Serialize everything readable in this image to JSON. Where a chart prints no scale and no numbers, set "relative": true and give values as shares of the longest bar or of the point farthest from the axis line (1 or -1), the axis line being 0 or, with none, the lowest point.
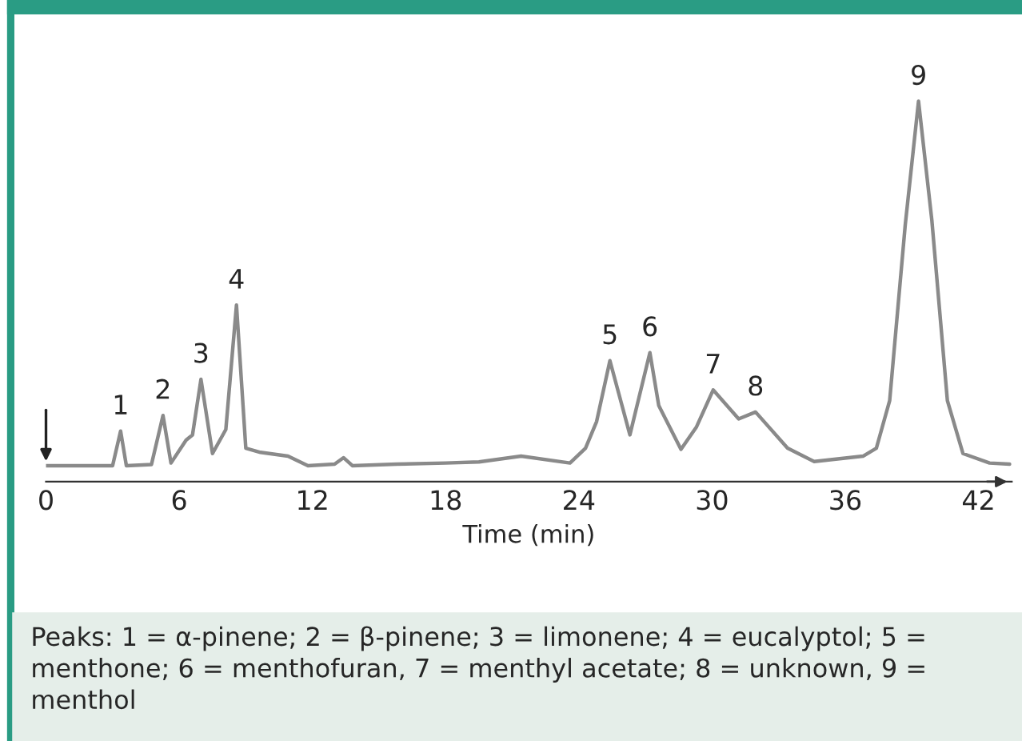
{
  "chart_data": {
    "type": "line",
    "relative": true,
    "xlabel": "Time (min)",
    "xlim": [
      0,
      43.5
    ],
    "xticks": [
      0,
      6,
      12,
      18,
      24,
      30,
      36,
      42
    ],
    "tick_labels": "x",
    "grid": false,
    "x": [
      0,
      3.0,
      3.36,
      3.62,
      4.75,
      5.27,
      5.63,
      6.31,
      6.6,
      6.98,
      7.5,
      8.1,
      8.58,
      9.0,
      9.66,
      10.9,
      11.8,
      13.0,
      13.4,
      13.8,
      15.8,
      18.0,
      19.5,
      21.4,
      23.6,
      24.3,
      24.8,
      25.4,
      26.3,
      27.2,
      27.6,
      28.6,
      29.3,
      30.05,
      31.2,
      31.96,
      33.4,
      34.6,
      36.8,
      37.4,
      38.0,
      38.7,
      39.3,
      39.9,
      40.6,
      41.3,
      42.5,
      43.4
    ],
    "series": [
      {
        "color": "#8a8a8a",
        "values": [
          0.042,
          0.042,
          0.133,
          0.042,
          0.045,
          0.174,
          0.049,
          0.109,
          0.123,
          0.269,
          0.074,
          0.137,
          0.464,
          0.088,
          0.077,
          0.067,
          0.042,
          0.046,
          0.063,
          0.042,
          0.046,
          0.049,
          0.052,
          0.067,
          0.049,
          0.088,
          0.158,
          0.318,
          0.123,
          0.339,
          0.2,
          0.085,
          0.144,
          0.241,
          0.165,
          0.183,
          0.088,
          0.053,
          0.067,
          0.088,
          0.213,
          0.674,
          1.0,
          0.687,
          0.213,
          0.074,
          0.049,
          0.046
        ]
      }
    ],
    "annotations": [
      {
        "text": "1",
        "x": 3.36,
        "y": 0.133
      },
      {
        "text": "2",
        "x": 5.27,
        "y": 0.174
      },
      {
        "text": "3",
        "x": 6.98,
        "y": 0.269
      },
      {
        "text": "4",
        "x": 8.58,
        "y": 0.464
      },
      {
        "text": "5",
        "x": 25.4,
        "y": 0.318
      },
      {
        "text": "6",
        "x": 27.2,
        "y": 0.339
      },
      {
        "text": "7",
        "x": 30.05,
        "y": 0.241
      },
      {
        "text": "8",
        "x": 31.96,
        "y": 0.183
      },
      {
        "text": "9",
        "x": 39.3,
        "y": 1.0
      },
      "Peaks: 1 = α-pinene; 2 = β-pinene; 3 = limonene; 4 = eucalyptol; 5 = menthone; 6 = menthofuran, 7 = menthyl acetate; 8 = unknown, 9 = menthol"
    ]
  }
}
